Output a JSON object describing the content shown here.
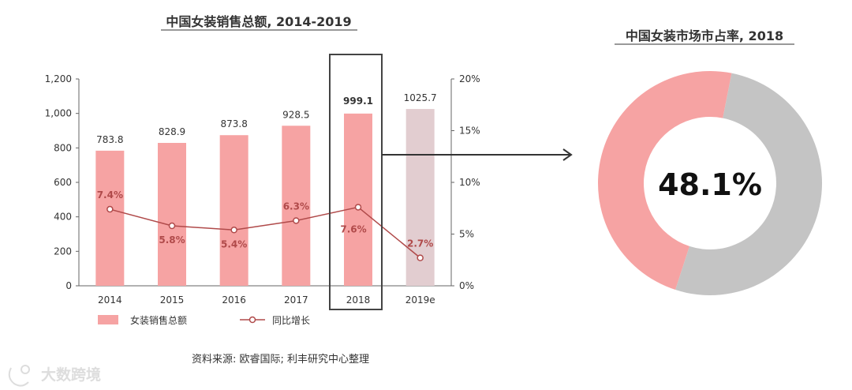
{
  "chart_data": [
    {
      "type": "bar+line",
      "title": "中国女装销售总额, 2014-2019",
      "categories": [
        "2014",
        "2015",
        "2016",
        "2017",
        "2018",
        "2019e"
      ],
      "series": [
        {
          "name": "女装销售总额",
          "type": "bar",
          "axis": "left",
          "values": [
            783.8,
            828.9,
            873.8,
            928.5,
            999.1,
            1025.7
          ],
          "labels": [
            "783.8",
            "828.9",
            "873.8",
            "928.5",
            "999.1",
            "1025.7"
          ]
        },
        {
          "name": "同比增长",
          "type": "line",
          "axis": "right",
          "values": [
            7.4,
            5.8,
            5.4,
            6.3,
            7.6,
            2.7
          ],
          "labels": [
            "7.4%",
            "5.8%",
            "5.4%",
            "6.3%",
            "7.6%",
            "2.7%"
          ]
        }
      ],
      "left_axis": {
        "ylim": [
          0,
          1200
        ],
        "ticks": [
          "0",
          "200",
          "400",
          "600",
          "800",
          "1,000",
          "1,200"
        ]
      },
      "right_axis": {
        "ylim": [
          0,
          20
        ],
        "ticks": [
          "0%",
          "5%",
          "10%",
          "15%",
          "20%"
        ]
      },
      "highlight_category": "2018",
      "estimate_category": "2019e"
    },
    {
      "type": "donut",
      "title": "中国女装市场市占率, 2018",
      "values": [
        48.1,
        51.9
      ],
      "center_label": "48.1%"
    }
  ],
  "colors": {
    "bar": "#f6a3a3",
    "bar_estimate": "#e2cdd0",
    "line": "#b04a4a",
    "donut_share": "#f6a3a3",
    "donut_rest": "#c4c4c4",
    "axis": "#666666",
    "highlight_box": "#444444"
  },
  "legend": {
    "bar_label": "女装销售总额",
    "line_label": "同比增长"
  },
  "source": "资料来源: 欧睿国际; 利丰研究中心整理",
  "watermark": "大数跨境"
}
